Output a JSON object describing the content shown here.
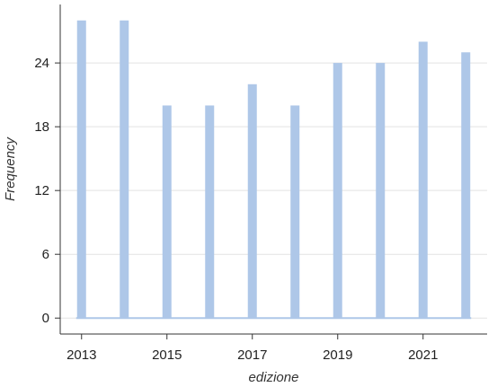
{
  "chart_data": {
    "type": "bar",
    "x": [
      2013,
      2014,
      2015,
      2016,
      2017,
      2018,
      2019,
      2020,
      2021,
      2022
    ],
    "values": [
      28,
      28,
      20,
      20,
      22,
      20,
      24,
      24,
      26,
      25
    ],
    "xlabel": "edizione",
    "ylabel": "Frequency",
    "xticks": [
      "2013",
      "2015",
      "2017",
      "2019",
      "2021"
    ],
    "yticks": [
      "0",
      "6",
      "12",
      "18",
      "24"
    ],
    "ylim": [
      -1.5,
      29.5
    ],
    "xlim": [
      2012.5,
      2022.5
    ],
    "grid": "horizontal",
    "bar_color": "#aec7e8",
    "baseline_color": "#aec7e8"
  }
}
